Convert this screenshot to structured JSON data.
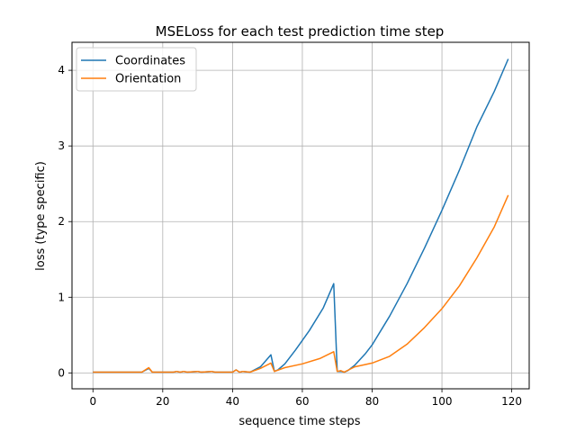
{
  "chart_data": {
    "type": "line",
    "title": "MSELoss for each test prediction time step",
    "xlabel": "sequence time steps",
    "ylabel": "loss (type specific)",
    "xlim": [
      -6,
      125
    ],
    "ylim": [
      -0.21,
      4.37
    ],
    "xticks": [
      0,
      20,
      40,
      60,
      80,
      100,
      120
    ],
    "yticks": [
      0,
      1,
      2,
      3,
      4
    ],
    "grid": true,
    "legend_position": "top-left",
    "series": [
      {
        "name": "Coordinates",
        "color": "#1f77b4",
        "points": [
          [
            0,
            0.01
          ],
          [
            5,
            0.01
          ],
          [
            10,
            0.01
          ],
          [
            14,
            0.01
          ],
          [
            16,
            0.06
          ],
          [
            17,
            0.01
          ],
          [
            20,
            0.01
          ],
          [
            23,
            0.01
          ],
          [
            24,
            0.02
          ],
          [
            25,
            0.01
          ],
          [
            26,
            0.02
          ],
          [
            27,
            0.01
          ],
          [
            30,
            0.02
          ],
          [
            31,
            0.01
          ],
          [
            34,
            0.02
          ],
          [
            35,
            0.01
          ],
          [
            40,
            0.01
          ],
          [
            41,
            0.04
          ],
          [
            42,
            0.01
          ],
          [
            43,
            0.02
          ],
          [
            45,
            0.01
          ],
          [
            48,
            0.08
          ],
          [
            51,
            0.24
          ],
          [
            52,
            0.02
          ],
          [
            53,
            0.04
          ],
          [
            55,
            0.12
          ],
          [
            58,
            0.3
          ],
          [
            62,
            0.56
          ],
          [
            66,
            0.86
          ],
          [
            69,
            1.18
          ],
          [
            70,
            0.02
          ],
          [
            71,
            0.02
          ],
          [
            72,
            0.01
          ],
          [
            73,
            0.03
          ],
          [
            75,
            0.1
          ],
          [
            78,
            0.25
          ],
          [
            80,
            0.37
          ],
          [
            85,
            0.75
          ],
          [
            90,
            1.18
          ],
          [
            95,
            1.65
          ],
          [
            100,
            2.15
          ],
          [
            105,
            2.68
          ],
          [
            110,
            3.25
          ],
          [
            115,
            3.72
          ],
          [
            119,
            4.15
          ]
        ]
      },
      {
        "name": "Orientation",
        "color": "#ff7f0e",
        "points": [
          [
            0,
            0.01
          ],
          [
            5,
            0.01
          ],
          [
            10,
            0.01
          ],
          [
            14,
            0.01
          ],
          [
            16,
            0.07
          ],
          [
            17,
            0.01
          ],
          [
            20,
            0.01
          ],
          [
            23,
            0.01
          ],
          [
            24,
            0.02
          ],
          [
            25,
            0.01
          ],
          [
            26,
            0.02
          ],
          [
            27,
            0.01
          ],
          [
            30,
            0.02
          ],
          [
            31,
            0.01
          ],
          [
            34,
            0.02
          ],
          [
            35,
            0.01
          ],
          [
            40,
            0.01
          ],
          [
            41,
            0.04
          ],
          [
            42,
            0.01
          ],
          [
            43,
            0.02
          ],
          [
            45,
            0.01
          ],
          [
            48,
            0.06
          ],
          [
            51,
            0.13
          ],
          [
            52,
            0.02
          ],
          [
            55,
            0.07
          ],
          [
            60,
            0.12
          ],
          [
            65,
            0.19
          ],
          [
            69,
            0.28
          ],
          [
            70,
            0.02
          ],
          [
            71,
            0.03
          ],
          [
            72,
            0.01
          ],
          [
            75,
            0.08
          ],
          [
            80,
            0.13
          ],
          [
            85,
            0.22
          ],
          [
            90,
            0.38
          ],
          [
            95,
            0.6
          ],
          [
            100,
            0.85
          ],
          [
            105,
            1.15
          ],
          [
            110,
            1.52
          ],
          [
            115,
            1.93
          ],
          [
            119,
            2.35
          ]
        ]
      }
    ]
  }
}
